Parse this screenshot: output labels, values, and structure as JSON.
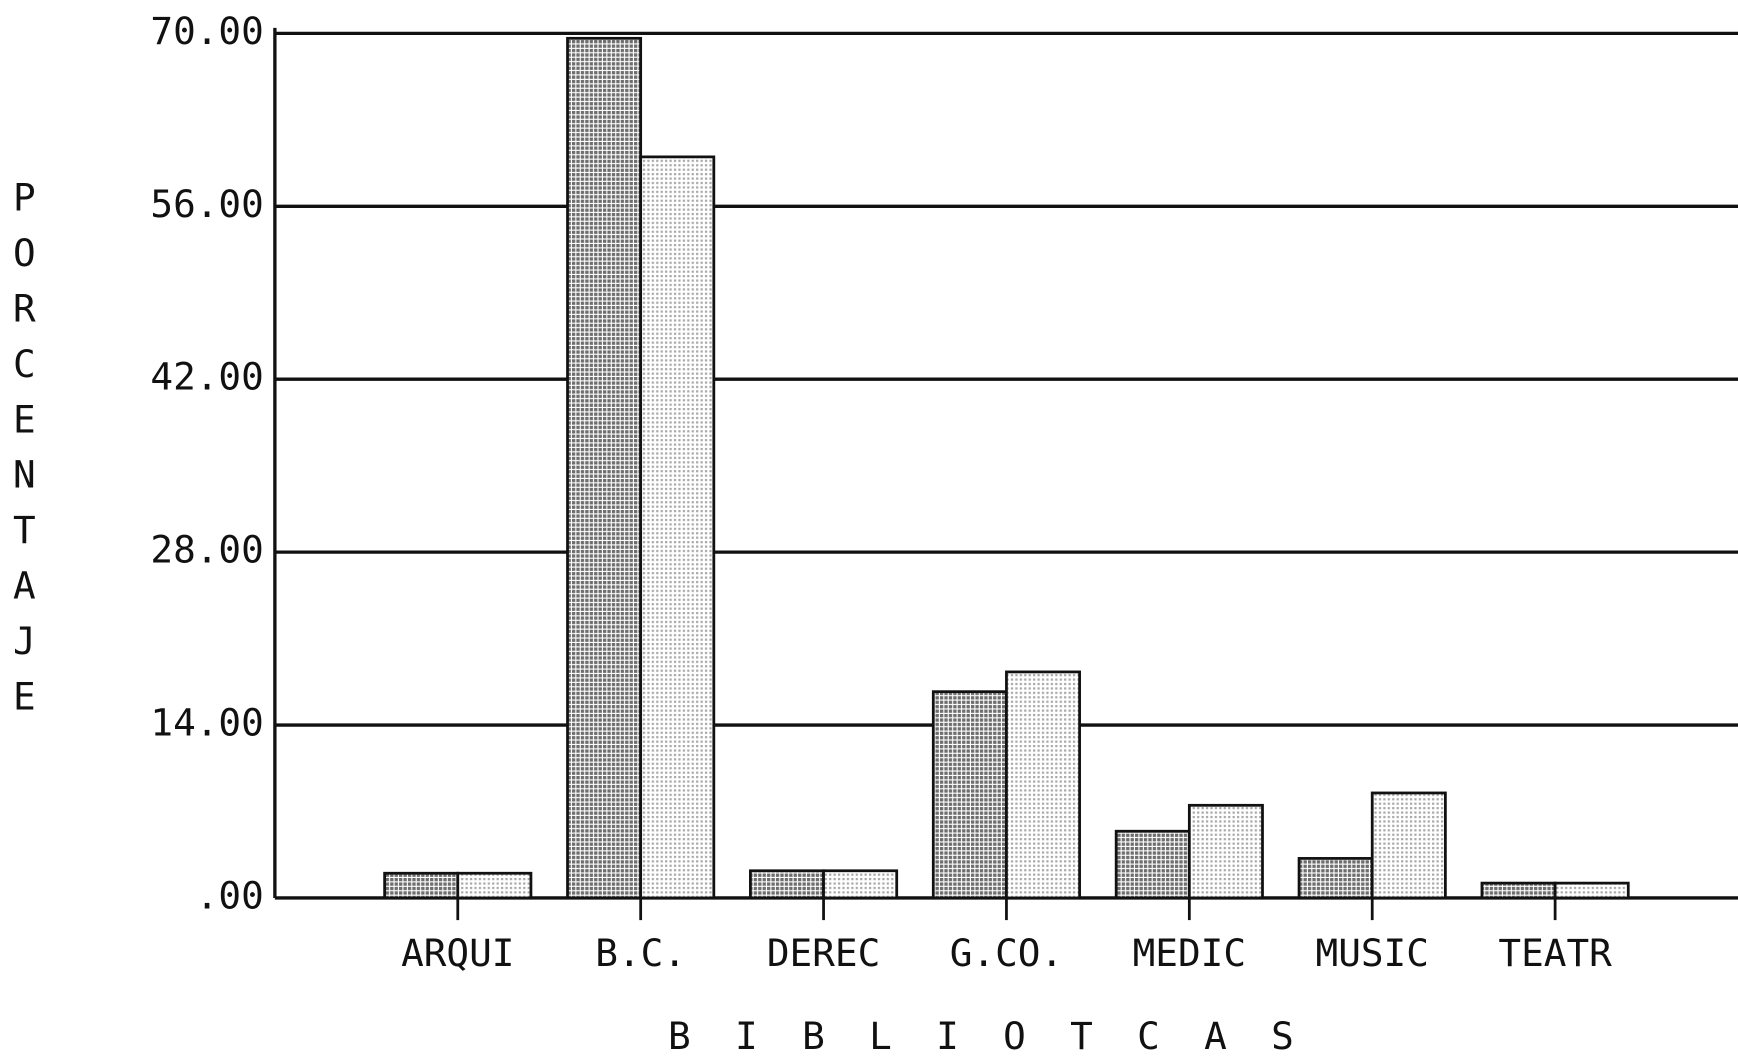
{
  "chart_data": {
    "type": "bar",
    "categories": [
      "ARQUI",
      "B.C.",
      "DEREC",
      "G.CO.",
      "MEDIC",
      "MUSIC",
      "TEATR"
    ],
    "series": [
      {
        "color": "#6e6e6e",
        "values": [
          2.0,
          69.6,
          2.2,
          16.7,
          5.4,
          3.2,
          1.2
        ]
      },
      {
        "color": "#a8a8a8",
        "values": [
          2.0,
          60.0,
          2.2,
          18.3,
          7.5,
          8.5,
          1.2
        ]
      }
    ],
    "ylim": [
      0,
      70
    ],
    "yticks": [
      {
        "value": 0,
        "label": ".00"
      },
      {
        "value": 14,
        "label": "14.00"
      },
      {
        "value": 28,
        "label": "28.00"
      },
      {
        "value": 42,
        "label": "42.00"
      },
      {
        "value": 56,
        "label": "56.00"
      },
      {
        "value": 70,
        "label": "70.00"
      }
    ],
    "ylabel": "PORCENTAJE",
    "xlabel": "BIBLIOTCAS",
    "grid": true
  }
}
